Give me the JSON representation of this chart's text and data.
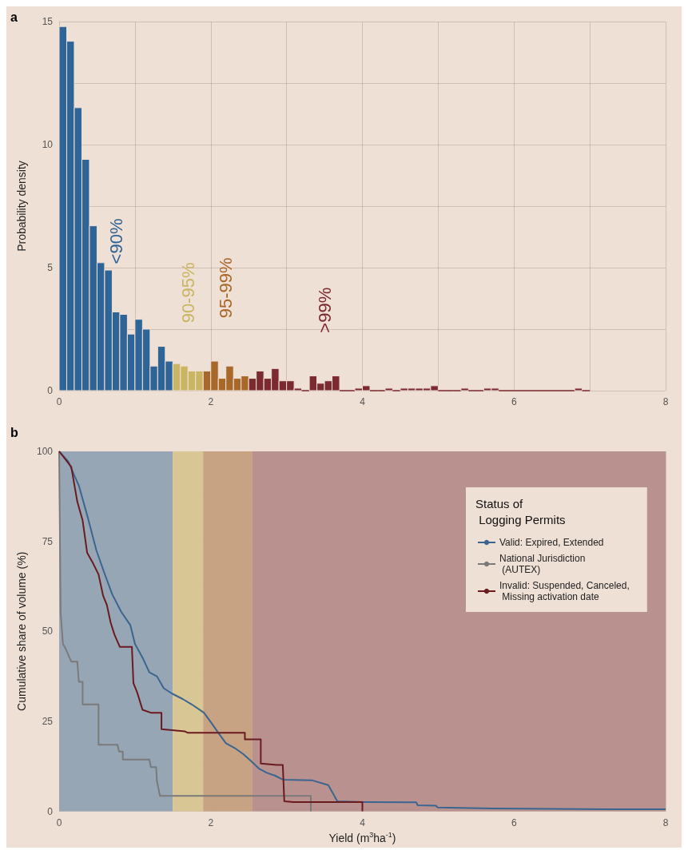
{
  "chart_data": [
    {
      "type": "histogram",
      "title": "a",
      "ylabel": "Probability density",
      "bins": [
        0,
        0.1,
        0.2,
        0.3,
        0.4,
        0.5,
        0.6,
        0.7,
        0.8,
        0.9,
        1.0,
        1.1,
        1.2,
        1.3,
        1.4,
        1.5,
        1.6,
        1.7,
        1.8,
        1.9,
        2.0,
        2.1,
        2.2,
        2.3,
        2.4,
        2.5,
        2.6,
        2.7,
        2.8,
        2.9,
        3.0,
        3.1,
        3.2,
        3.3,
        3.4,
        3.5,
        3.6,
        3.7,
        3.8,
        3.9,
        4.0,
        4.1,
        4.2,
        4.3,
        4.4,
        4.5,
        4.6,
        4.7,
        4.8,
        4.9,
        5.0,
        5.1,
        5.2,
        5.3,
        5.4,
        5.5,
        5.6,
        5.7,
        5.8,
        5.9,
        6.0,
        6.1,
        6.2,
        6.3,
        6.4,
        6.5,
        6.6,
        6.7,
        6.8,
        6.9,
        7.0
      ],
      "values": [
        14.8,
        14.2,
        11.5,
        9.4,
        6.7,
        5.2,
        4.9,
        3.2,
        3.1,
        2.3,
        2.9,
        2.5,
        1.0,
        1.8,
        1.2,
        1.1,
        1.0,
        0.8,
        0.8,
        0.8,
        1.2,
        0.5,
        1.0,
        0.5,
        0.6,
        0.5,
        0.8,
        0.5,
        0.9,
        0.4,
        0.4,
        0.1,
        0,
        0.6,
        0.3,
        0.4,
        0.6,
        0,
        0,
        0.1,
        0.2,
        0,
        0,
        0.1,
        0,
        0.1,
        0.1,
        0.1,
        0.1,
        0.2,
        0,
        0,
        0,
        0.1,
        0,
        0,
        0.1,
        0.1,
        0,
        0,
        0,
        0,
        0,
        0,
        0,
        0,
        0,
        0,
        0.1,
        0
      ],
      "colors": [
        "#2f6496",
        "#2f6496",
        "#2f6496",
        "#2f6496",
        "#2f6496",
        "#2f6496",
        "#2f6496",
        "#2f6496",
        "#2f6496",
        "#2f6496",
        "#2f6496",
        "#2f6496",
        "#2f6496",
        "#2f6496",
        "#2f6496",
        "#c9b562",
        "#c9b562",
        "#c9b562",
        "#c9b562",
        "#a8682a",
        "#a8682a",
        "#a8682a",
        "#a8682a",
        "#a8682a",
        "#a8682a",
        "#7b2a31",
        "#7b2a31",
        "#7b2a31",
        "#7b2a31",
        "#7b2a31",
        "#7b2a31",
        "#7b2a31",
        "#7b2a31",
        "#7b2a31",
        "#7b2a31",
        "#7b2a31",
        "#7b2a31",
        "#7b2a31",
        "#7b2a31",
        "#7b2a31",
        "#7b2a31",
        "#7b2a31",
        "#7b2a31",
        "#7b2a31",
        "#7b2a31",
        "#7b2a31",
        "#7b2a31",
        "#7b2a31",
        "#7b2a31",
        "#7b2a31",
        "#7b2a31",
        "#7b2a31",
        "#7b2a31",
        "#7b2a31",
        "#7b2a31",
        "#7b2a31",
        "#7b2a31",
        "#7b2a31",
        "#7b2a31",
        "#7b2a31",
        "#7b2a31",
        "#7b2a31",
        "#7b2a31",
        "#7b2a31",
        "#7b2a31",
        "#7b2a31",
        "#7b2a31",
        "#7b2a31",
        "#7b2a31",
        "#7b2a31"
      ],
      "xlim": [
        0,
        8
      ],
      "xticks": [
        0,
        2,
        4,
        6,
        8
      ],
      "ylim": [
        0,
        15
      ],
      "yticks": [
        0,
        5,
        10,
        15
      ],
      "grid": true,
      "annotations": [
        "<90%",
        "90-95%",
        "95-99%",
        ">99%"
      ]
    },
    {
      "type": "line",
      "title": "b",
      "xlabel": "Yield (m$^{3}$ha$^{-1}$)",
      "ylabel": "Cumulative share of volume (%)",
      "legend_title": "Status of\n Logging Permits",
      "xlim": [
        0,
        8
      ],
      "xticks": [
        0,
        2,
        4,
        6,
        8
      ],
      "ylim": [
        0,
        100
      ],
      "yticks": [
        0,
        25,
        50,
        75,
        100
      ],
      "grid": true,
      "legend": "top right",
      "bands": [
        {
          "axis": "x",
          "from": 0,
          "to": 1.5,
          "color": "#97a6b4"
        },
        {
          "axis": "x",
          "from": 1.5,
          "to": 1.9,
          "color": "#d8c794"
        },
        {
          "axis": "x",
          "from": 1.9,
          "to": 2.55,
          "color": "#c7a283"
        },
        {
          "axis": "x",
          "from": 2.55,
          "to": 8,
          "color": "#b99290"
        }
      ],
      "series": [
        {
          "name": "Valid: Expired, Extended",
          "color": "#3a6590",
          "x": [
            0,
            0.12,
            0.26,
            0.38,
            0.49,
            0.59,
            0.7,
            0.82,
            0.94,
            1.0,
            1.1,
            1.19,
            1.29,
            1.38,
            1.49,
            1.63,
            1.75,
            1.91,
            2.01,
            2.1,
            2.2,
            2.33,
            2.43,
            2.53,
            2.64,
            2.74,
            2.85,
            2.95,
            3.34,
            3.55,
            3.62,
            3.67,
            4.0,
            4.71,
            4.73,
            4.97,
            4.99,
            5.71,
            7.29,
            8.0
          ],
          "values": [
            100,
            97.2,
            90.5,
            81.5,
            72.6,
            66.6,
            60.3,
            55.4,
            51.7,
            46.5,
            42.7,
            38.6,
            37.5,
            34.2,
            32.7,
            31.2,
            29.7,
            27.4,
            24.5,
            21.8,
            18.9,
            17.4,
            15.9,
            14.0,
            11.8,
            10.7,
            9.9,
            8.8,
            8.6,
            7.3,
            4.7,
            2.8,
            2.6,
            2.5,
            1.7,
            1.6,
            1.1,
            0.8,
            0.6,
            0.6
          ]
        },
        {
          "name": "National Jurisdiction\n (AUTEX)",
          "color": "#7a7a7a",
          "x": [
            0,
            0.01,
            0.02,
            0.05,
            0.09,
            0.16,
            0.24,
            0.26,
            0.31,
            0.31,
            0.52,
            0.52,
            0.77,
            0.79,
            0.84,
            0.84,
            1.19,
            1.21,
            1.28,
            1.29,
            1.33,
            3.32,
            3.32
          ],
          "values": [
            100,
            77.8,
            55.4,
            46.5,
            45,
            41.6,
            41.6,
            36,
            36,
            29.7,
            29.7,
            18.5,
            18.5,
            16.6,
            16.6,
            14.4,
            14.4,
            12.3,
            12.3,
            8.4,
            4.3,
            4.3,
            0
          ]
        },
        {
          "name": "Invalid: Suspended, Canceled,\n Missing activation date",
          "color": "#6b1a1f",
          "x": [
            0,
            0.16,
            0.24,
            0.31,
            0.37,
            0.45,
            0.52,
            0.58,
            0.63,
            0.68,
            0.73,
            0.8,
            0.96,
            0.98,
            1.03,
            1.1,
            1.21,
            1.35,
            1.35,
            1.66,
            1.7,
            2.45,
            2.45,
            2.66,
            2.66,
            2.87,
            2.95,
            2.97,
            3.09,
            4.0,
            4.0
          ],
          "values": [
            100,
            95.7,
            86,
            80.8,
            71.8,
            68.8,
            65.8,
            59.9,
            57.3,
            52.4,
            49.1,
            45.7,
            45.7,
            35.6,
            33,
            28.2,
            27.4,
            27.4,
            22.8,
            22.2,
            21.8,
            21.8,
            20,
            20,
            13.3,
            12.9,
            12.9,
            2.8,
            2.6,
            2.6,
            0
          ]
        }
      ]
    }
  ]
}
